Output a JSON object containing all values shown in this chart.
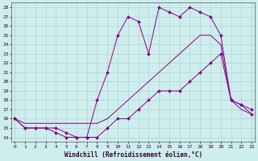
{
  "xlabel": "Windchill (Refroidissement éolien,°C)",
  "background_color": "#ceeeed",
  "grid_color": "#aacccc",
  "line_color": "#880088",
  "x_ticks": [
    0,
    1,
    2,
    3,
    4,
    5,
    6,
    7,
    8,
    9,
    10,
    11,
    12,
    13,
    14,
    15,
    16,
    17,
    18,
    19,
    20,
    21,
    22,
    23
  ],
  "y_ticks": [
    14,
    15,
    16,
    17,
    18,
    19,
    20,
    21,
    22,
    23,
    24,
    25,
    26,
    27,
    28
  ],
  "ylim": [
    13.5,
    28.5
  ],
  "xlim": [
    -0.3,
    23.3
  ],
  "line1_x": [
    0,
    1,
    2,
    3,
    4,
    5,
    6,
    7,
    8,
    9,
    10,
    11,
    12,
    13,
    14,
    15,
    16,
    17,
    18,
    19,
    20,
    21,
    22,
    23
  ],
  "line1_y": [
    16,
    15,
    15,
    15,
    15,
    14.5,
    14,
    14,
    14,
    15,
    16,
    16,
    17,
    18,
    19,
    19,
    19,
    20,
    21,
    22,
    23,
    18,
    17.5,
    17
  ],
  "line2_x": [
    0,
    1,
    2,
    3,
    4,
    5,
    6,
    7,
    8,
    9,
    10,
    11,
    12,
    13,
    14,
    15,
    16,
    17,
    18,
    19,
    20,
    21,
    22,
    23
  ],
  "line2_y": [
    16,
    15.5,
    15.5,
    15.5,
    15.5,
    15.5,
    15.5,
    15.5,
    15.5,
    16,
    17,
    18,
    19,
    20,
    21,
    22,
    23,
    24,
    25,
    25,
    24,
    18,
    17,
    16.5
  ],
  "line3_x": [
    0,
    1,
    2,
    3,
    4,
    5,
    6,
    7,
    8,
    9,
    10,
    11,
    12,
    13,
    14,
    15,
    16,
    17,
    18,
    19,
    20,
    21,
    22,
    23
  ],
  "line3_y": [
    16,
    15,
    15,
    15,
    14.5,
    14,
    14,
    14,
    18,
    21,
    25,
    27,
    26.5,
    23,
    28,
    27.5,
    27,
    28,
    27.5,
    27,
    25,
    18,
    17.5,
    16.5
  ]
}
